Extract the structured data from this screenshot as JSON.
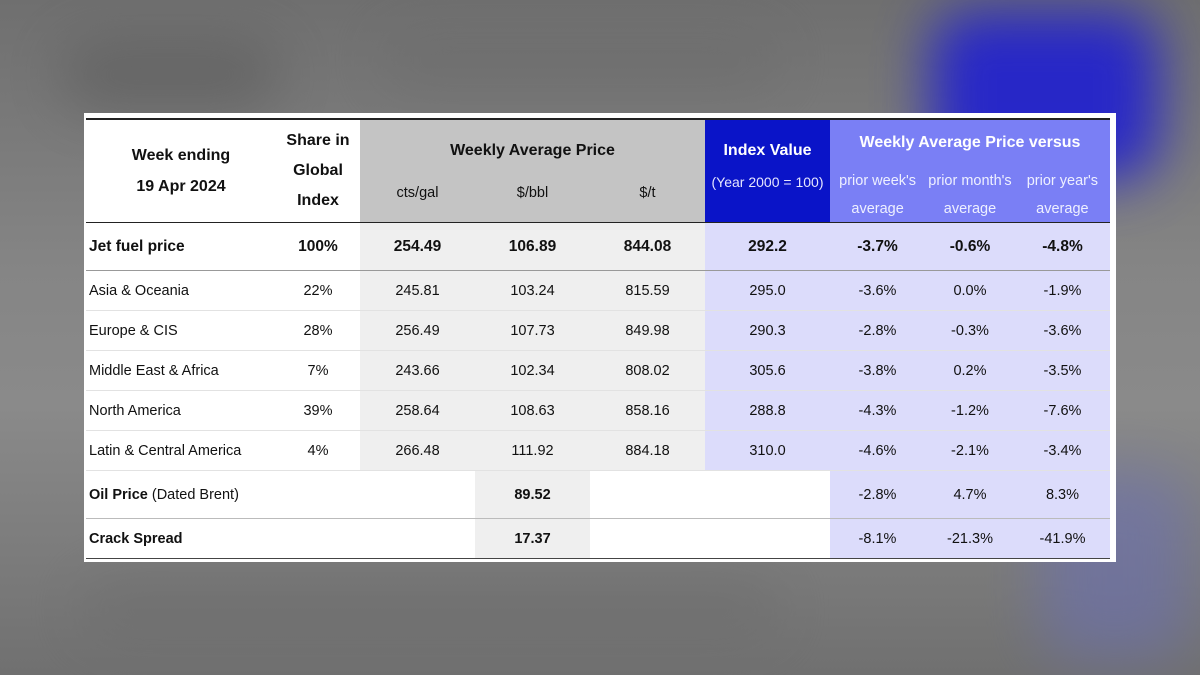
{
  "header": {
    "week_ending_line1": "Week ending",
    "week_ending_line2": "19 Apr 2024",
    "share_line1": "Share in",
    "share_line2": "Global",
    "share_line3": "Index",
    "weekly_avg_price": "Weekly Average Price",
    "units": [
      "cts/gal",
      "$/bbl",
      "$/t"
    ],
    "index_value": "Index Value",
    "index_base": "(Year 2000 = 100)",
    "versus_title": "Weekly Average Price versus",
    "versus_cols": [
      {
        "line1": "prior week's",
        "line2": "average"
      },
      {
        "line1": "prior month's",
        "line2": "average"
      },
      {
        "line1": "prior year's",
        "line2": "average"
      }
    ]
  },
  "jet_fuel": {
    "label": "Jet fuel price",
    "share": "100%",
    "cts_gal": "254.49",
    "usd_bbl": "106.89",
    "usd_t": "844.08",
    "index": "292.2",
    "wk": "-3.7%",
    "mo": "-0.6%",
    "yr": "-4.8%"
  },
  "regions": [
    {
      "label": "Asia & Oceania",
      "share": "22%",
      "cts_gal": "245.81",
      "usd_bbl": "103.24",
      "usd_t": "815.59",
      "index": "295.0",
      "wk": "-3.6%",
      "mo": "0.0%",
      "yr": "-1.9%"
    },
    {
      "label": "Europe & CIS",
      "share": "28%",
      "cts_gal": "256.49",
      "usd_bbl": "107.73",
      "usd_t": "849.98",
      "index": "290.3",
      "wk": "-2.8%",
      "mo": "-0.3%",
      "yr": "-3.6%"
    },
    {
      "label": "Middle East & Africa",
      "share": "7%",
      "cts_gal": "243.66",
      "usd_bbl": "102.34",
      "usd_t": "808.02",
      "index": "305.6",
      "wk": "-3.8%",
      "mo": "0.2%",
      "yr": "-3.5%"
    },
    {
      "label": "North America",
      "share": "39%",
      "cts_gal": "258.64",
      "usd_bbl": "108.63",
      "usd_t": "858.16",
      "index": "288.8",
      "wk": "-4.3%",
      "mo": "-1.2%",
      "yr": "-7.6%"
    },
    {
      "label": "Latin & Central America",
      "share": "4%",
      "cts_gal": "266.48",
      "usd_bbl": "111.92",
      "usd_t": "884.18",
      "index": "310.0",
      "wk": "-4.6%",
      "mo": "-2.1%",
      "yr": "-3.4%"
    }
  ],
  "oil_price": {
    "label": "Oil Price",
    "label_suffix": "(Dated Brent)",
    "usd_bbl": "89.52",
    "wk": "-2.8%",
    "mo": "4.7%",
    "yr": "8.3%"
  },
  "crack_spread": {
    "label": "Crack Spread",
    "usd_bbl": "17.37",
    "wk": "-8.1%",
    "mo": "-21.3%",
    "yr": "-41.9%"
  }
}
